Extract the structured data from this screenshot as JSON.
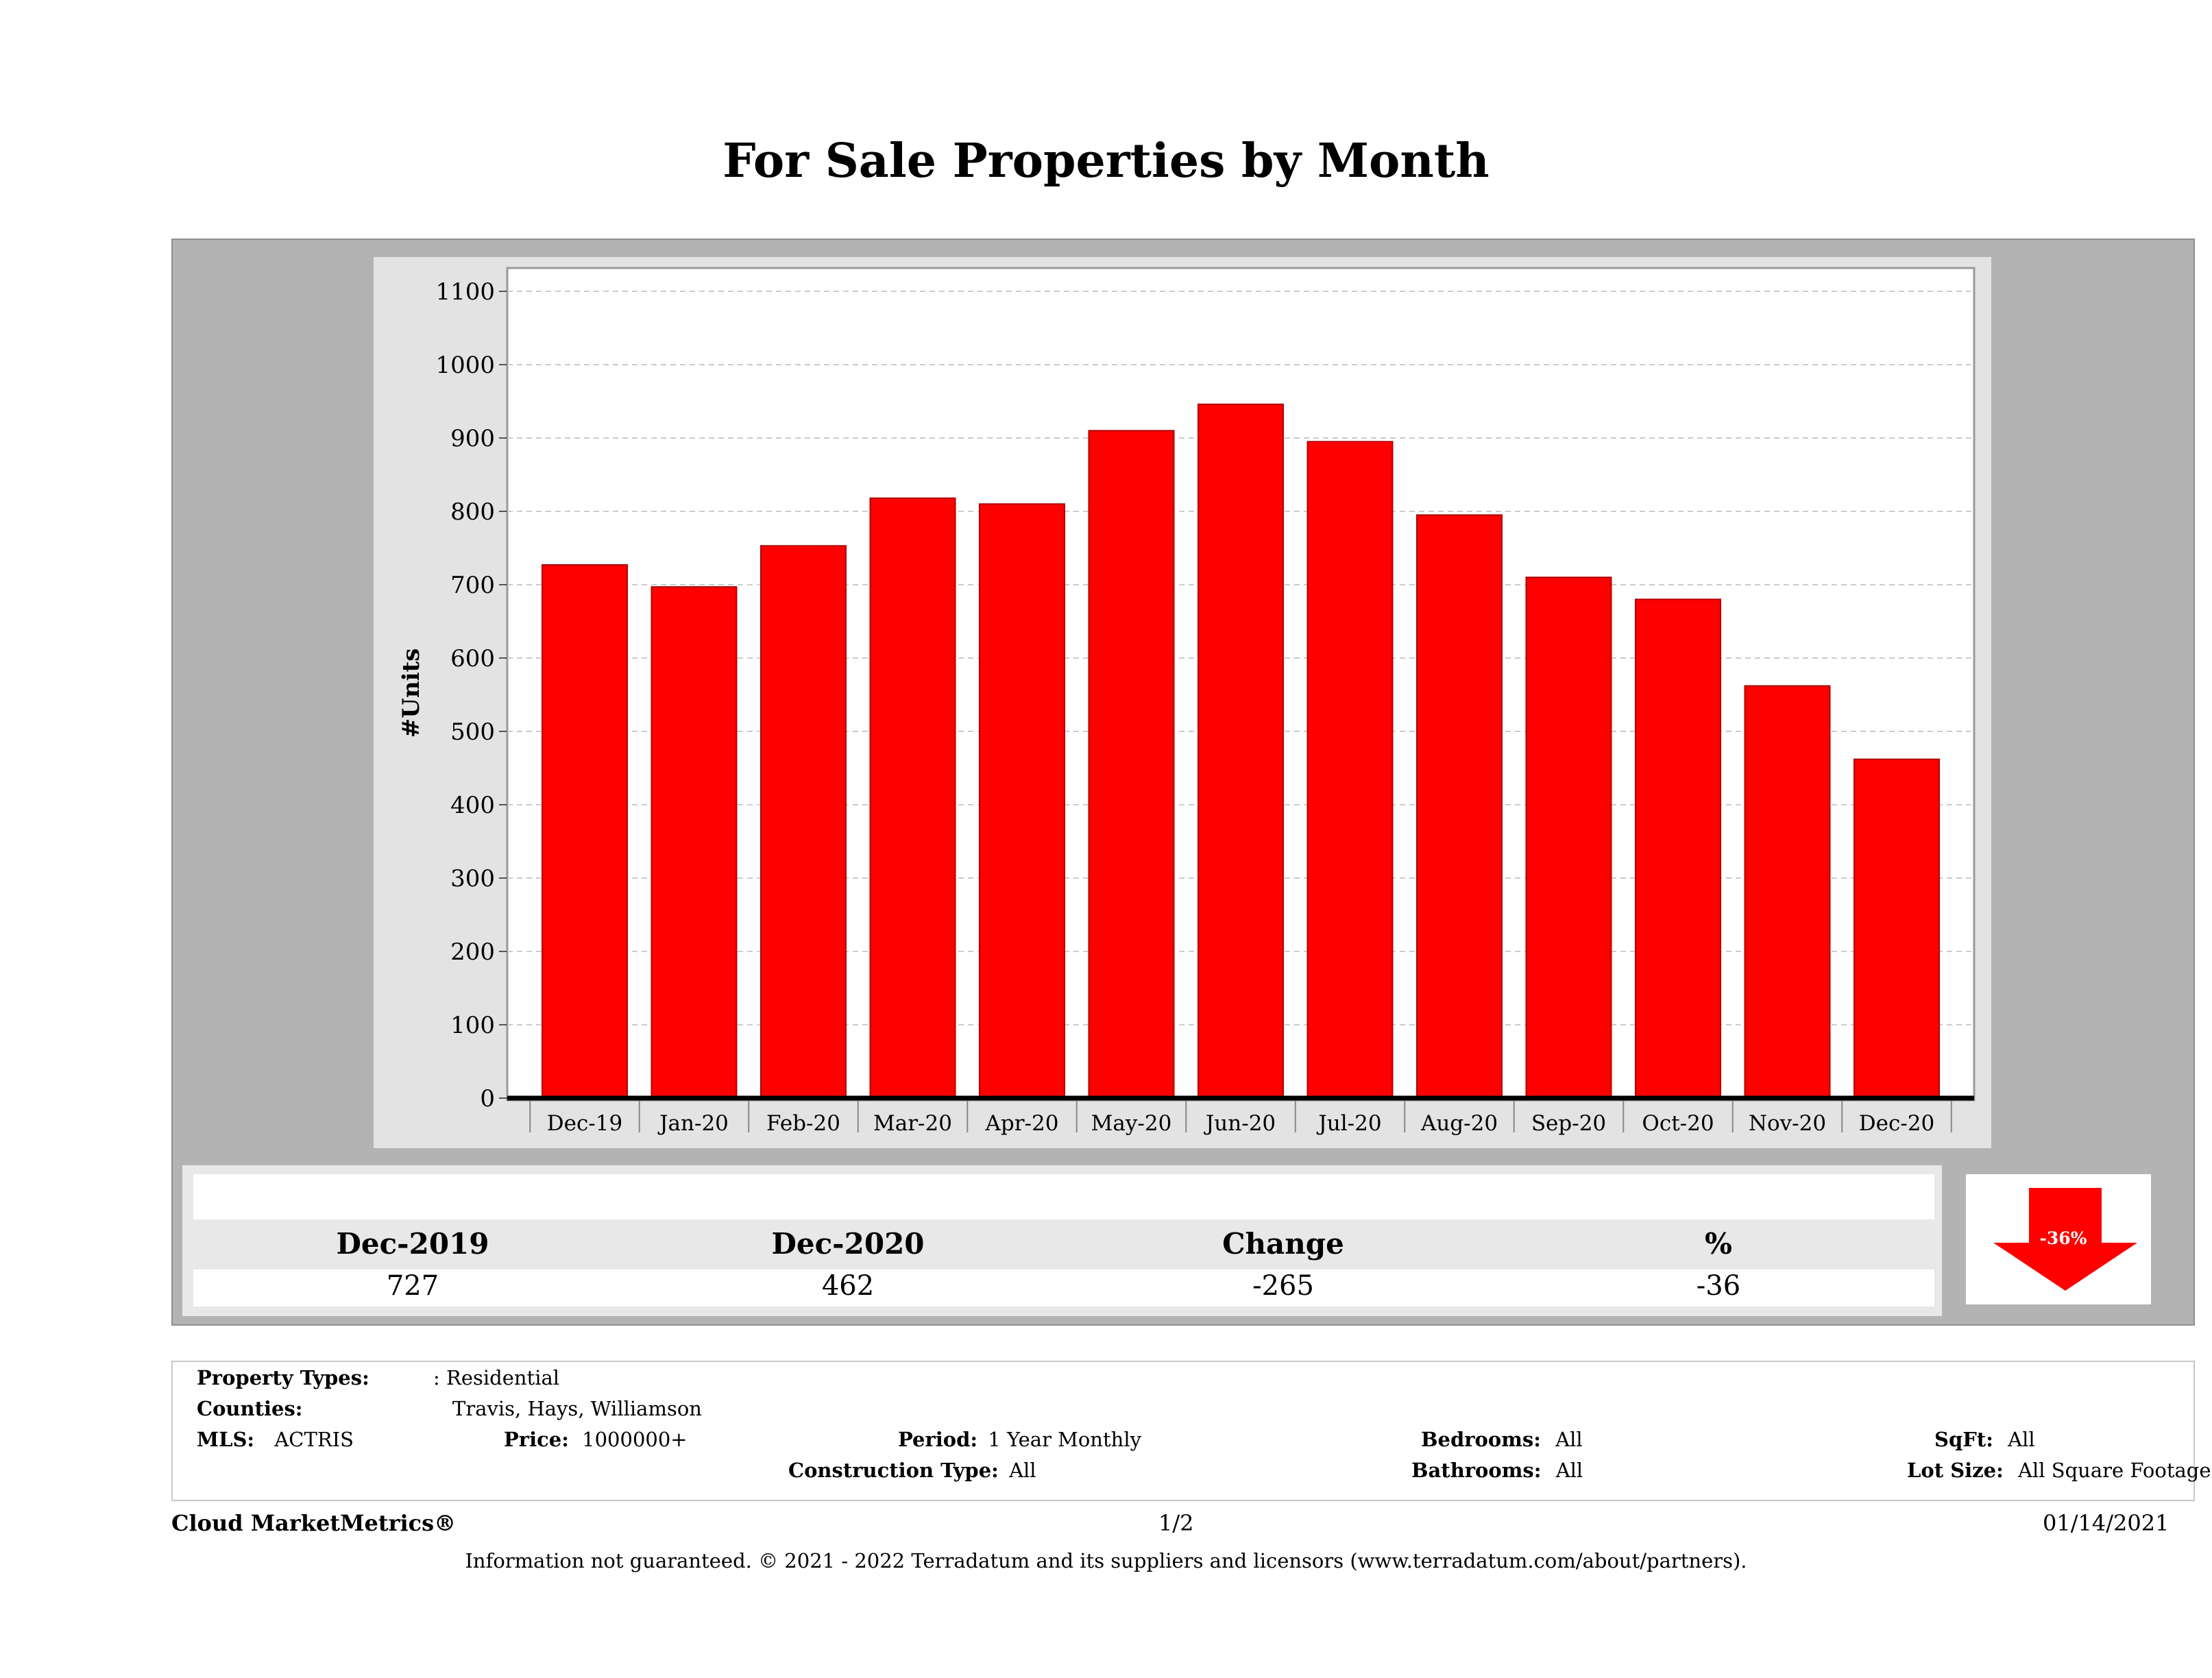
{
  "title": "For Sale Properties by Month",
  "chart_data": {
    "type": "bar",
    "categories": [
      "Dec-19",
      "Jan-20",
      "Feb-20",
      "Mar-20",
      "Apr-20",
      "May-20",
      "Jun-20",
      "Jul-20",
      "Aug-20",
      "Sep-20",
      "Oct-20",
      "Nov-20",
      "Dec-20"
    ],
    "values": [
      727,
      697,
      753,
      818,
      810,
      910,
      946,
      895,
      795,
      710,
      680,
      562,
      462
    ],
    "ylabel": "#Units",
    "xlabel": "",
    "ylim": [
      0,
      1130
    ],
    "yticks": [
      0,
      100,
      200,
      300,
      400,
      500,
      600,
      700,
      800,
      900,
      1000,
      1100
    ],
    "grid": true,
    "legend": "none",
    "bar_color": "#fe0000"
  },
  "summary": {
    "headers": [
      "Dec-2019",
      "Dec-2020",
      "Change",
      "%"
    ],
    "values": [
      "727",
      "462",
      "-265",
      "-36"
    ],
    "badge": "-36%",
    "arrow_color": "#fe0000"
  },
  "info": {
    "property_types_label": "Property Types:",
    "property_types_value": ": Residential",
    "counties_label": "Counties:",
    "counties_value": "Travis, Hays, Williamson",
    "mls_label": "MLS:",
    "mls_value": "ACTRIS",
    "price_label": "Price:",
    "price_value": "1000000+",
    "period_label": "Period:",
    "period_value": "1 Year Monthly",
    "construction_label": "Construction Type:",
    "construction_value": "All",
    "bedrooms_label": "Bedrooms:",
    "bedrooms_value": "All",
    "bathrooms_label": "Bathrooms:",
    "bathrooms_value": "All",
    "sqft_label": "SqFt:",
    "sqft_value": "All",
    "lot_label": "Lot Size:",
    "lot_value": "All Square Footage"
  },
  "footer": {
    "brand": "Cloud MarketMetrics®",
    "page": "1/2",
    "date": "01/14/2021",
    "disclaimer": "Information not guaranteed. © 2021 - 2022 Terradatum and its suppliers and licensors (www.terradatum.com/about/partners)."
  }
}
